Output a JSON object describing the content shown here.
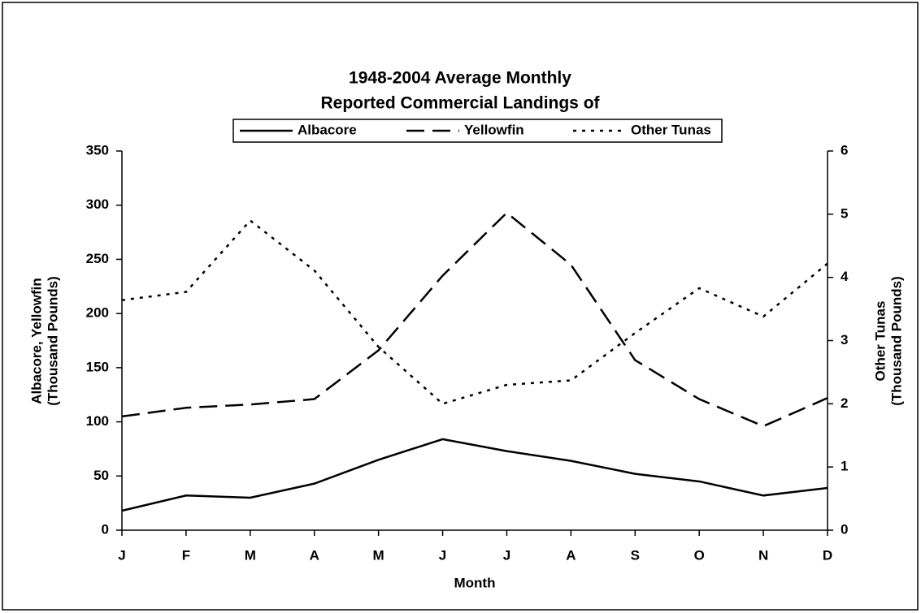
{
  "chart_data": {
    "type": "line",
    "title": [
      "1948-2004 Average Monthly",
      "Reported Commercial Landings of"
    ],
    "xlabel": "Month",
    "ylabel": [
      "Albacore, Yellowfin",
      "(Thousand Pounds)"
    ],
    "y2label": [
      "Other Tunas",
      "(Thousand Pounds)"
    ],
    "categories": [
      "J",
      "F",
      "M",
      "A",
      "M",
      "J",
      "J",
      "A",
      "S",
      "O",
      "N",
      "D"
    ],
    "series": [
      {
        "name": "Albacore",
        "color": "#000000",
        "dash": "solid",
        "values": [
          18,
          32,
          30,
          43,
          65,
          84,
          73,
          64,
          52,
          45,
          32,
          39
        ]
      },
      {
        "name": "Yellowfin",
        "color": "#000000",
        "dash": "dashed",
        "values": [
          105,
          113,
          116,
          121,
          166,
          235,
          293,
          245,
          157,
          121,
          96,
          122
        ]
      },
      {
        "name": "Other Tunas",
        "color": "#000000",
        "dash": "dotted",
        "axis": "y2",
        "values": [
          3.64,
          3.77,
          4.9,
          4.11,
          2.9,
          2.0,
          2.3,
          2.37,
          3.12,
          3.83,
          3.38,
          4.22
        ]
      }
    ],
    "ylim": [
      0,
      350
    ],
    "yticks": [
      0,
      50,
      100,
      150,
      200,
      250,
      300,
      350
    ],
    "y2lim": [
      0,
      6
    ],
    "y2ticks": [
      0,
      1,
      2,
      3,
      4,
      5,
      6
    ],
    "grid": false,
    "legend": "top"
  }
}
